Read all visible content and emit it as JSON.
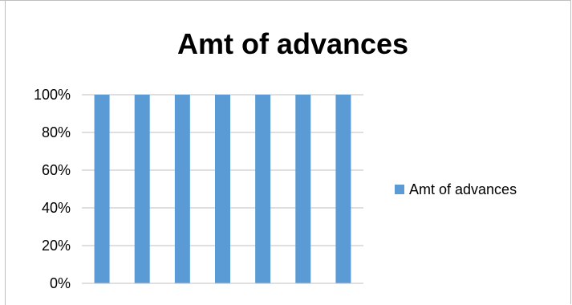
{
  "chart_data": {
    "type": "bar",
    "title": "Amt of advances",
    "xlabel": "",
    "ylabel": "",
    "categories": [
      "",
      "",
      "",
      "",
      "",
      "",
      ""
    ],
    "series": [
      {
        "name": "Amt of advances",
        "color": "#5b9bd5",
        "values": [
          100,
          100,
          100,
          100,
          100,
          100,
          100
        ]
      }
    ],
    "ylim": [
      0,
      100
    ],
    "yticks": [
      0,
      20,
      40,
      60,
      80,
      100
    ],
    "ytick_labels": [
      "0%",
      "20%",
      "40%",
      "60%",
      "80%",
      "100%"
    ],
    "grid": true,
    "legend_position": "right",
    "stacked_percent": true
  }
}
